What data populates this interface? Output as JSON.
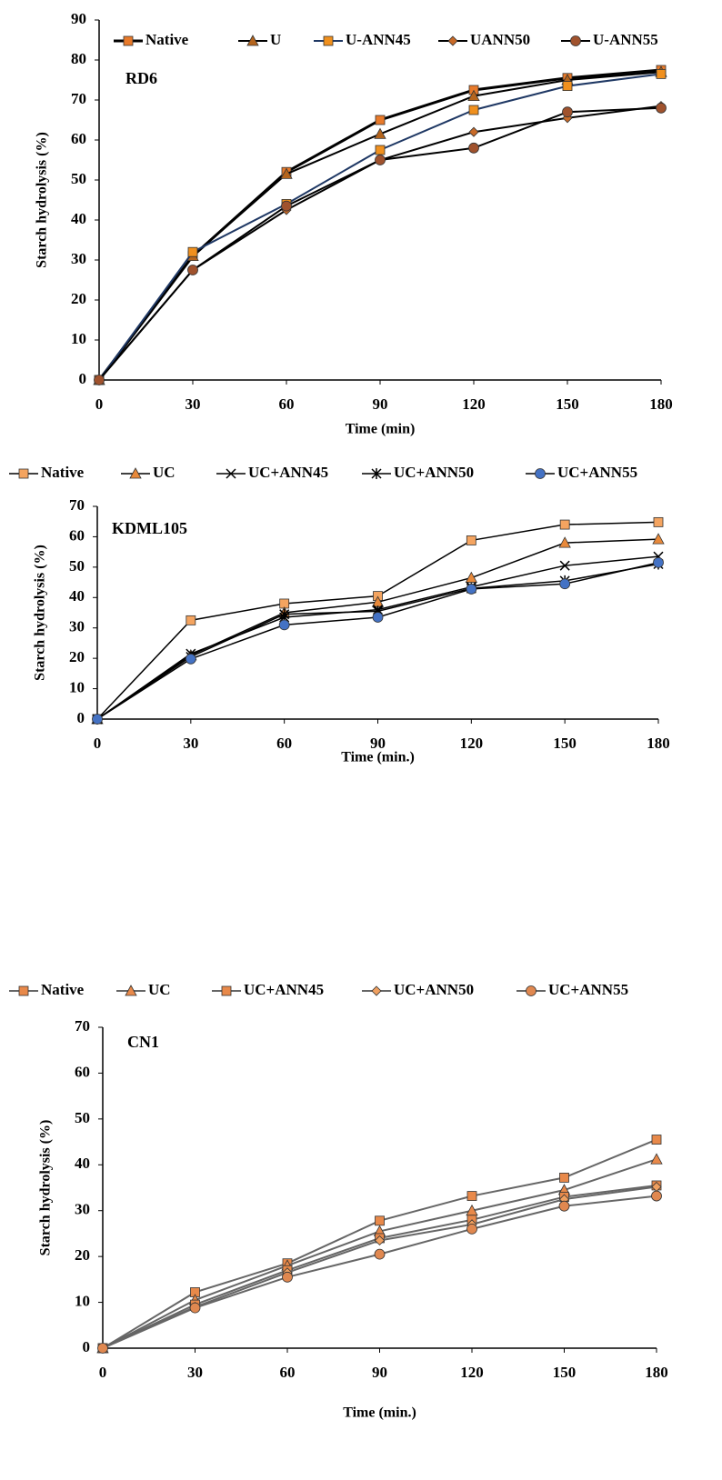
{
  "chart_data": [
    {
      "type": "line",
      "annotation": "RD6",
      "x_label": "Time (min)",
      "y_label": "Starch hydrolysis  (%)",
      "x": [
        0,
        30,
        60,
        90,
        120,
        150,
        180
      ],
      "xlim": [
        0,
        180
      ],
      "xticks": [
        0,
        30,
        60,
        90,
        120,
        150,
        180
      ],
      "ylim": [
        0,
        90
      ],
      "yticks": [
        0,
        10,
        20,
        30,
        40,
        50,
        60,
        70,
        80,
        90
      ],
      "grid": false,
      "legend": "top",
      "series": [
        {
          "name": "Native",
          "color": "#000000",
          "marker": "square",
          "marker_color": "#e87a2a",
          "width": 3,
          "values": [
            0,
            31,
            52,
            65,
            72.5,
            75.5,
            77.5
          ]
        },
        {
          "name": "U",
          "color": "#000000",
          "marker": "triangle",
          "marker_color": "#b5651d",
          "width": 2,
          "values": [
            0,
            31,
            51.5,
            61.5,
            71,
            75,
            77
          ]
        },
        {
          "name": "U-ANN45",
          "color": "#1f3864",
          "marker": "square",
          "marker_color": "#f0901e",
          "width": 2,
          "values": [
            0,
            32,
            44,
            57.5,
            67.5,
            73.5,
            76.5
          ]
        },
        {
          "name": "UANN50",
          "color": "#000000",
          "marker": "diamond",
          "marker_color": "#c86a28",
          "width": 2,
          "values": [
            0,
            27.5,
            42.5,
            55,
            62,
            65.5,
            68.5
          ]
        },
        {
          "name": "U-ANN55",
          "color": "#000000",
          "marker": "circle",
          "marker_color": "#a0522d",
          "width": 2,
          "values": [
            0,
            27.5,
            43.5,
            55,
            58,
            67,
            68
          ]
        }
      ]
    },
    {
      "type": "line",
      "annotation": "KDML105",
      "x_label": "Time (min.)",
      "y_label": "Starch hydrolysis  (%)",
      "x": [
        0,
        30,
        60,
        90,
        120,
        150,
        180
      ],
      "xlim": [
        0,
        180
      ],
      "xticks": [
        0,
        30,
        60,
        90,
        120,
        150,
        180
      ],
      "ylim": [
        0,
        70
      ],
      "yticks": [
        0,
        10,
        20,
        30,
        40,
        50,
        60,
        70
      ],
      "grid": false,
      "legend": "above",
      "series": [
        {
          "name": "Native",
          "color": "#000000",
          "marker": "square",
          "marker_color": "#f4a460",
          "width": 1.5,
          "values": [
            0,
            32.5,
            38,
            40.5,
            58.8,
            64,
            64.8
          ]
        },
        {
          "name": "UC",
          "color": "#000000",
          "marker": "triangle",
          "marker_color": "#e8893a",
          "width": 1.5,
          "values": [
            0,
            21,
            35,
            38.5,
            46.5,
            58,
            59.2
          ]
        },
        {
          "name": "UC+ANN45",
          "color": "#000000",
          "marker": "x",
          "marker_color": "#000000",
          "width": 1.5,
          "values": [
            0,
            21.5,
            33.5,
            36,
            43.5,
            50.5,
            53.5
          ]
        },
        {
          "name": "UC+ANN50",
          "color": "#000000",
          "marker": "star",
          "marker_color": "#000000",
          "width": 1.5,
          "values": [
            0,
            20.5,
            34.5,
            35.5,
            43,
            45.5,
            51
          ]
        },
        {
          "name": "UC+ANN55",
          "color": "#000000",
          "marker": "circle",
          "marker_color": "#4472c4",
          "width": 1.5,
          "values": [
            0,
            19.8,
            31,
            33.5,
            42.8,
            44.5,
            51.5
          ]
        }
      ]
    },
    {
      "type": "line",
      "annotation": "CN1",
      "x_label": "Time (min.)",
      "y_label": "Starch hydrolysis (%)",
      "x": [
        0,
        30,
        60,
        90,
        120,
        150,
        180
      ],
      "xlim": [
        0,
        180
      ],
      "xticks": [
        0,
        30,
        60,
        90,
        120,
        150,
        180
      ],
      "ylim": [
        0,
        70
      ],
      "yticks": [
        0,
        10,
        20,
        30,
        40,
        50,
        60,
        70
      ],
      "grid": false,
      "legend": "above",
      "series": [
        {
          "name": "Native",
          "color": "#666666",
          "marker": "square",
          "marker_color": "#e8894a",
          "width": 2,
          "values": [
            0,
            12.2,
            18.5,
            27.8,
            33.2,
            37.2,
            45.5
          ]
        },
        {
          "name": "UC",
          "color": "#666666",
          "marker": "triangle",
          "marker_color": "#e8894a",
          "width": 2,
          "values": [
            0,
            10.5,
            18,
            25.5,
            30,
            34.5,
            41.2
          ]
        },
        {
          "name": "UC+ANN45",
          "color": "#666666",
          "marker": "square",
          "marker_color": "#e8894a",
          "width": 2,
          "values": [
            0,
            9.5,
            17,
            24,
            28,
            33,
            35.5
          ]
        },
        {
          "name": "UC+ANN50",
          "color": "#666666",
          "marker": "diamond",
          "marker_color": "#f0a060",
          "width": 2,
          "values": [
            0,
            9,
            16.5,
            23.5,
            27,
            32.5,
            35.2
          ]
        },
        {
          "name": "UC+ANN55",
          "color": "#666666",
          "marker": "circle",
          "marker_color": "#e08850",
          "width": 2,
          "values": [
            0,
            8.8,
            15.5,
            20.5,
            26,
            31,
            33.2
          ]
        }
      ]
    }
  ]
}
